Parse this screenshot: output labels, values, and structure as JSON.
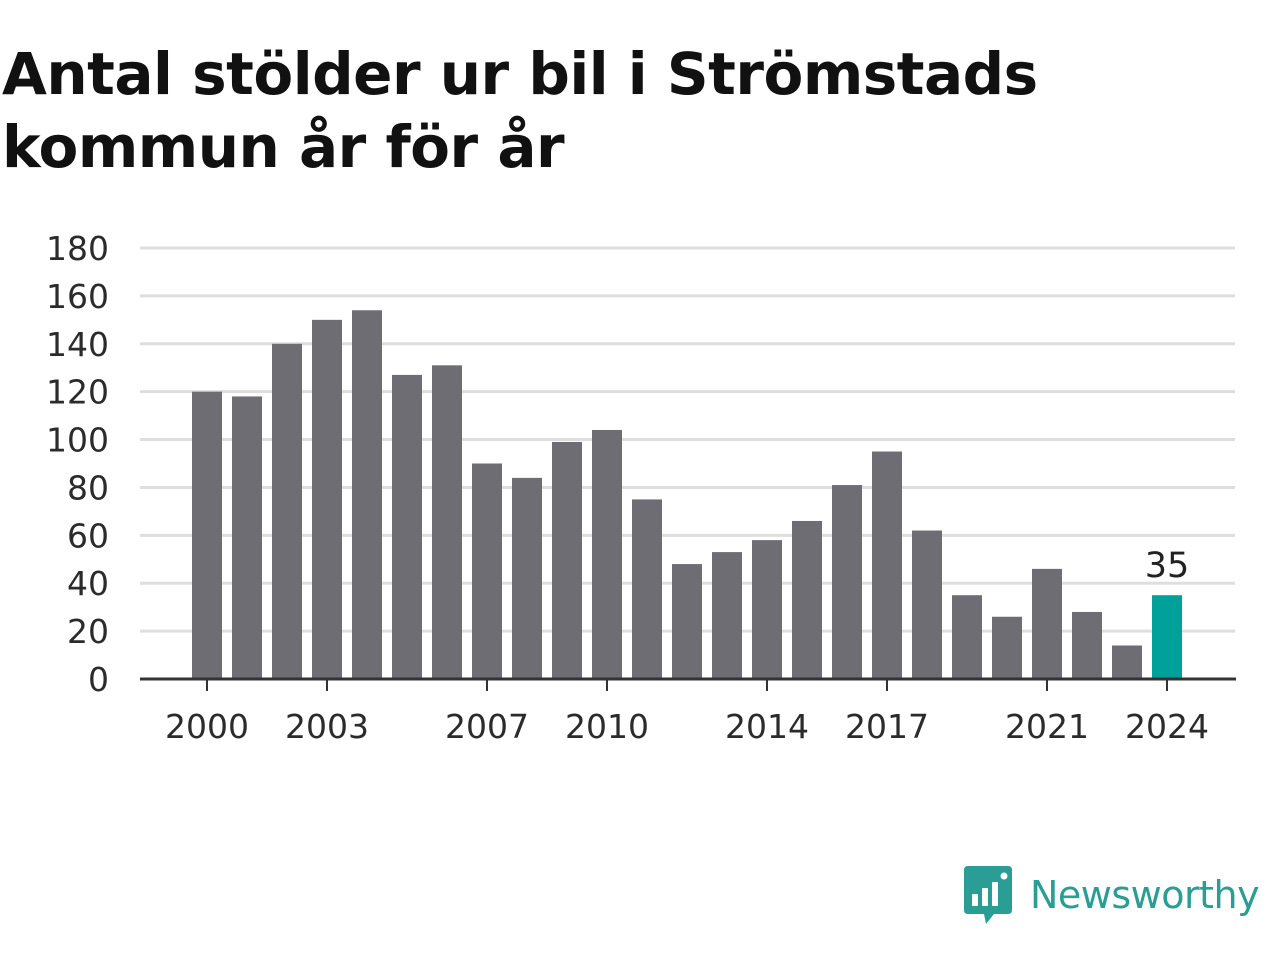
{
  "title": "Antal stölder ur bil i Strömstads kommun år för år",
  "brand": {
    "name": "Newsworthy",
    "color": "#2a9d95",
    "icon": "bar-chart-speech-bubble-icon"
  },
  "colors": {
    "bar": "#6e6d73",
    "highlight": "#00a19a",
    "grid": "#dedede",
    "axis": "#333333"
  },
  "chart_data": {
    "type": "bar",
    "categories": [
      "2000",
      "2001",
      "2002",
      "2003",
      "2004",
      "2005",
      "2006",
      "2007",
      "2008",
      "2009",
      "2010",
      "2011",
      "2012",
      "2013",
      "2014",
      "2015",
      "2016",
      "2017",
      "2018",
      "2019",
      "2020",
      "2021",
      "2022",
      "2023",
      "2024"
    ],
    "values": [
      120,
      118,
      140,
      150,
      154,
      127,
      131,
      90,
      84,
      99,
      104,
      75,
      48,
      53,
      58,
      66,
      81,
      95,
      62,
      35,
      26,
      46,
      28,
      14,
      35
    ],
    "x_tick_labels": [
      "2000",
      "2003",
      "2007",
      "2010",
      "2014",
      "2017",
      "2021",
      "2024"
    ],
    "y_ticks": [
      0,
      20,
      40,
      60,
      80,
      100,
      120,
      140,
      160,
      180
    ],
    "ylim": [
      0,
      180
    ],
    "grid": true,
    "legend": "none",
    "highlight": {
      "category": "2024",
      "label": "35"
    }
  }
}
